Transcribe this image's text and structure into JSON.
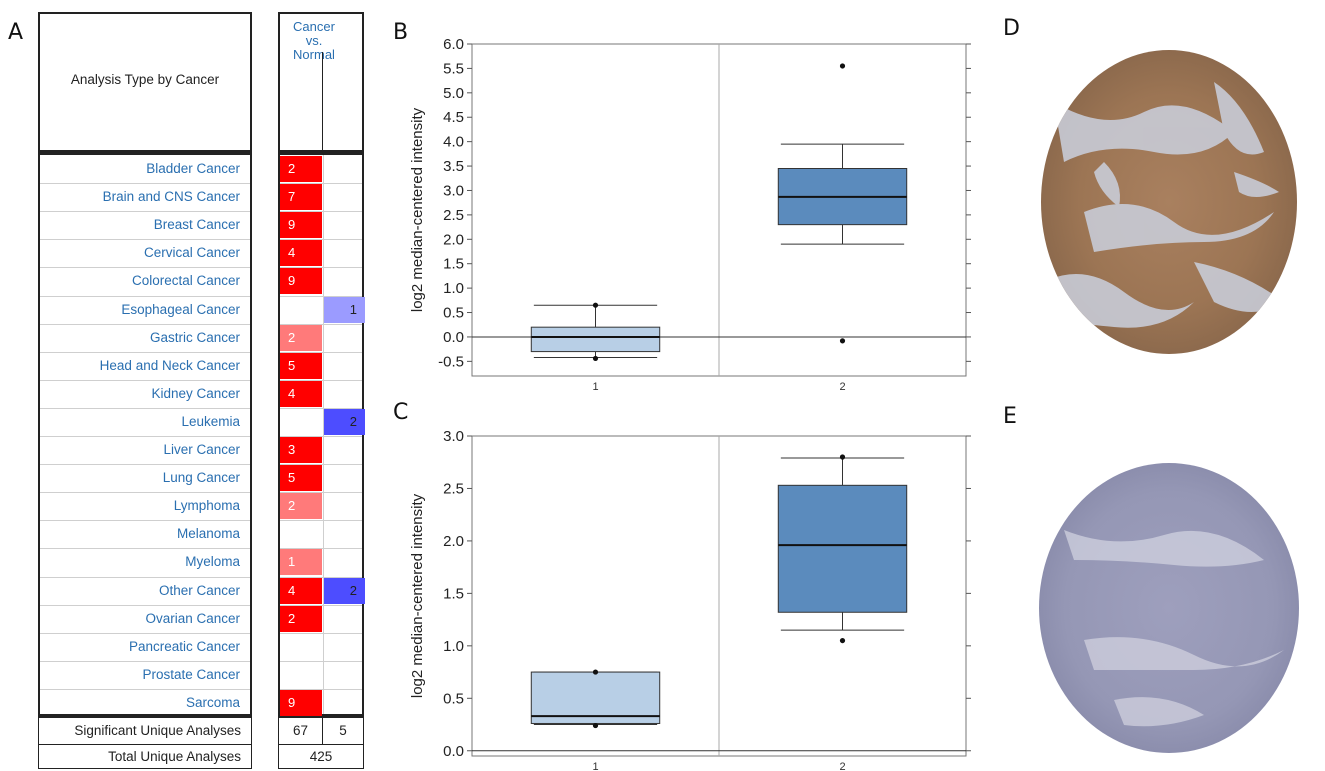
{
  "panel_letters": {
    "a": "A",
    "b": "B",
    "c": "C",
    "d": "D",
    "e": "E"
  },
  "panel_a": {
    "header_label": "Analysis Type by Cancer",
    "column_header": [
      "Cancer",
      "vs.",
      "Normal"
    ],
    "rows": [
      {
        "name": "Bladder Cancer",
        "over": "2",
        "under": ""
      },
      {
        "name": "Brain and CNS Cancer",
        "over": "7",
        "under": ""
      },
      {
        "name": "Breast Cancer",
        "over": "9",
        "under": ""
      },
      {
        "name": "Cervical Cancer",
        "over": "4",
        "under": ""
      },
      {
        "name": "Colorectal Cancer",
        "over": "9",
        "under": ""
      },
      {
        "name": "Esophageal Cancer",
        "over": "",
        "under": "1"
      },
      {
        "name": "Gastric Cancer",
        "over": "2",
        "under": ""
      },
      {
        "name": "Head and Neck Cancer",
        "over": "5",
        "under": ""
      },
      {
        "name": "Kidney Cancer",
        "over": "4",
        "under": ""
      },
      {
        "name": "Leukemia",
        "over": "",
        "under": "2"
      },
      {
        "name": "Liver Cancer",
        "over": "3",
        "under": ""
      },
      {
        "name": "Lung Cancer",
        "over": "5",
        "under": ""
      },
      {
        "name": "Lymphoma",
        "over": "2",
        "under": ""
      },
      {
        "name": "Melanoma",
        "over": "",
        "under": ""
      },
      {
        "name": "Myeloma",
        "over": "1",
        "under": ""
      },
      {
        "name": "Other Cancer",
        "over": "4",
        "under": "2"
      },
      {
        "name": "Ovarian Cancer",
        "over": "2",
        "under": ""
      },
      {
        "name": "Pancreatic Cancer",
        "over": "",
        "under": ""
      },
      {
        "name": "Prostate Cancer",
        "over": "",
        "under": ""
      },
      {
        "name": "Sarcoma",
        "over": "9",
        "under": ""
      }
    ],
    "over_colors": {
      "strong": "#ff0000",
      "light": "#ff7a7a"
    },
    "under_colors": {
      "strong": "#4d4dff",
      "light": "#9b9bff"
    },
    "footer": {
      "significant_label": "Significant Unique Analyses",
      "significant_over": "67",
      "significant_under": "5",
      "total_label": "Total Unique Analyses",
      "total": "425"
    }
  },
  "chart_data": [
    {
      "type": "box",
      "panel": "B",
      "ylabel": "log2 median-centered intensity",
      "ylim": [
        -0.8,
        6.0
      ],
      "yticks": [
        "6.0",
        "5.5",
        "5.0",
        "4.5",
        "4.0",
        "3.5",
        "3.0",
        "2.5",
        "2.0",
        "1.5",
        "1.0",
        "0.5",
        "0.0",
        "-0.5"
      ],
      "categories": [
        "1",
        "2"
      ],
      "boxes": [
        {
          "category": "1",
          "whisker_low": -0.42,
          "q1": -0.3,
          "median": 0.0,
          "q3": 0.2,
          "whisker_high": 0.65,
          "outliers": [
            -0.44,
            0.65
          ],
          "color": "#b8cfe6"
        },
        {
          "category": "2",
          "whisker_low": 1.9,
          "q1": 2.3,
          "median": 2.87,
          "q3": 3.45,
          "whisker_high": 3.95,
          "outliers": [
            5.55,
            -0.08
          ],
          "color": "#5b8bbd"
        }
      ]
    },
    {
      "type": "box",
      "panel": "C",
      "ylabel": "log2 median-centered intensity",
      "ylim": [
        -0.05,
        3.0
      ],
      "yticks": [
        "3.0",
        "2.5",
        "2.0",
        "1.5",
        "1.0",
        "0.5",
        "0.0"
      ],
      "categories": [
        "1",
        "2"
      ],
      "boxes": [
        {
          "category": "1",
          "whisker_low": 0.25,
          "q1": 0.26,
          "median": 0.33,
          "q3": 0.75,
          "whisker_high": 0.75,
          "outliers": [
            0.75,
            0.24
          ],
          "color": "#b8cfe6"
        },
        {
          "category": "2",
          "whisker_low": 1.15,
          "q1": 1.32,
          "median": 1.96,
          "q3": 2.53,
          "whisker_high": 2.79,
          "outliers": [
            2.8,
            1.05
          ],
          "color": "#5b8bbd"
        }
      ]
    }
  ]
}
